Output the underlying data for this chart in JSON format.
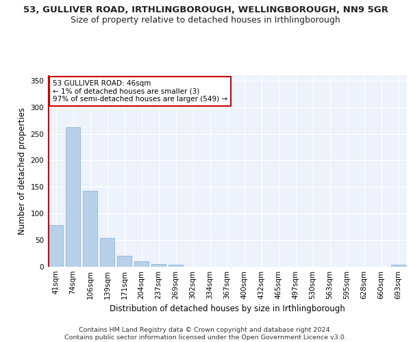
{
  "title_line1": "53, GULLIVER ROAD, IRTHLINGBOROUGH, WELLINGBOROUGH, NN9 5GR",
  "title_line2": "Size of property relative to detached houses in Irthlingborough",
  "xlabel": "Distribution of detached houses by size in Irthlingborough",
  "ylabel": "Number of detached properties",
  "categories": [
    "41sqm",
    "74sqm",
    "106sqm",
    "139sqm",
    "171sqm",
    "204sqm",
    "237sqm",
    "269sqm",
    "302sqm",
    "334sqm",
    "367sqm",
    "400sqm",
    "432sqm",
    "465sqm",
    "497sqm",
    "530sqm",
    "563sqm",
    "595sqm",
    "628sqm",
    "660sqm",
    "693sqm"
  ],
  "values": [
    78,
    262,
    143,
    54,
    20,
    10,
    5,
    4,
    0,
    0,
    0,
    0,
    0,
    0,
    0,
    0,
    0,
    0,
    0,
    0,
    4
  ],
  "bar_color": "#b8d0ea",
  "bar_edge_color": "#7aafd4",
  "highlight_line_color": "#cc0000",
  "annotation_text": "53 GULLIVER ROAD: 46sqm\n← 1% of detached houses are smaller (3)\n97% of semi-detached houses are larger (549) →",
  "annotation_box_color": "#ffffff",
  "annotation_box_edge_color": "#cc0000",
  "footer_line1": "Contains HM Land Registry data © Crown copyright and database right 2024.",
  "footer_line2": "Contains public sector information licensed under the Open Government Licence v3.0.",
  "ylim": [
    0,
    360
  ],
  "yticks": [
    0,
    50,
    100,
    150,
    200,
    250,
    300,
    350
  ],
  "bg_color": "#eef2fb",
  "grid_color": "#ffffff",
  "title_fontsize": 9.5,
  "subtitle_fontsize": 9,
  "axis_label_fontsize": 8.5,
  "tick_fontsize": 7.5,
  "footer_fontsize": 6.8
}
